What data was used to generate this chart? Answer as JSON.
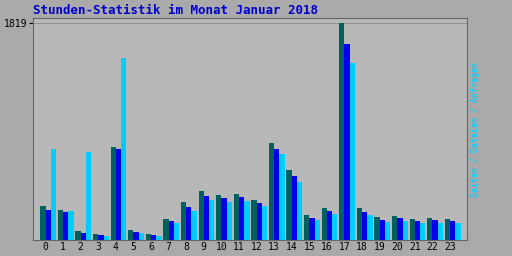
{
  "title": "Stunden-Statistik im Monat Januar 2018",
  "title_color": "#0000CC",
  "ylabel_right": "Seiten / Dateien / Anfragen",
  "hours": [
    0,
    1,
    2,
    3,
    4,
    5,
    6,
    7,
    8,
    9,
    10,
    11,
    12,
    13,
    14,
    15,
    16,
    17,
    18,
    19,
    20,
    21,
    22,
    23
  ],
  "seiten": [
    290,
    255,
    80,
    50,
    780,
    85,
    55,
    175,
    320,
    410,
    380,
    390,
    340,
    810,
    590,
    210,
    270,
    1819,
    270,
    195,
    205,
    180,
    185,
    175
  ],
  "dateien": [
    255,
    235,
    65,
    42,
    760,
    70,
    42,
    160,
    280,
    375,
    355,
    360,
    310,
    760,
    540,
    188,
    248,
    1640,
    240,
    172,
    188,
    162,
    168,
    162
  ],
  "anfragen": [
    760,
    245,
    740,
    38,
    1520,
    65,
    38,
    145,
    250,
    340,
    325,
    330,
    285,
    720,
    490,
    170,
    225,
    1480,
    215,
    150,
    165,
    142,
    148,
    142
  ],
  "color_seiten": "#006060",
  "color_dateien": "#0000EE",
  "color_anfragen": "#00CCFF",
  "bg_color": "#AAAAAA",
  "plot_bg": "#B8B8B8",
  "grid_color": "#909090",
  "ymax": 1819,
  "bar_width": 0.3,
  "n_gridlines": 7
}
